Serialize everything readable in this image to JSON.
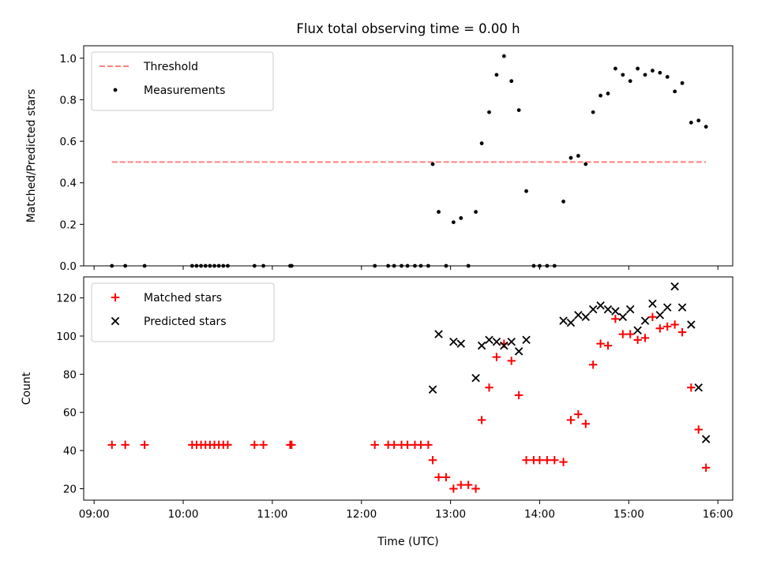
{
  "title": "Flux total observing time = 0.00 h",
  "colors": {
    "threshold": "#ff7f7f",
    "measurements": "#000000",
    "matched": "#ff0000",
    "predicted": "#000000"
  },
  "chart_data": [
    {
      "type": "scatter",
      "ylabel": "Matched/Predicted stars",
      "xlabel": "",
      "ylim": [
        0,
        1.06
      ],
      "yticks": [
        0.0,
        0.2,
        0.4,
        0.6,
        0.8,
        1.0
      ],
      "ytick_labels": [
        "0.0",
        "0.2",
        "0.4",
        "0.6",
        "0.8",
        "1.0"
      ],
      "xlim": [
        "08:53",
        "16:10"
      ],
      "legend_placement": "upper-left",
      "threshold": {
        "name": "Threshold",
        "y": 0.5,
        "x_start": "09:12",
        "x_end": "15:52"
      },
      "series": [
        {
          "name": "Measurements",
          "marker": "dot",
          "points": [
            [
              "09:12",
              0.0
            ],
            [
              "09:21",
              0.0
            ],
            [
              "09:34",
              0.0
            ],
            [
              "10:06",
              0.0
            ],
            [
              "10:09",
              0.0
            ],
            [
              "10:12",
              0.0
            ],
            [
              "10:15",
              0.0
            ],
            [
              "10:18",
              0.0
            ],
            [
              "10:21",
              0.0
            ],
            [
              "10:24",
              0.0
            ],
            [
              "10:27",
              0.0
            ],
            [
              "10:30",
              0.0
            ],
            [
              "10:48",
              0.0
            ],
            [
              "10:54",
              0.0
            ],
            [
              "11:12",
              0.0
            ],
            [
              "11:13",
              0.0
            ],
            [
              "12:09",
              0.0
            ],
            [
              "12:18",
              0.0
            ],
            [
              "12:22",
              0.0
            ],
            [
              "12:27",
              0.0
            ],
            [
              "12:31",
              0.0
            ],
            [
              "12:36",
              0.0
            ],
            [
              "12:40",
              0.0
            ],
            [
              "12:45",
              0.0
            ],
            [
              "12:48",
              0.49
            ],
            [
              "12:52",
              0.26
            ],
            [
              "12:57",
              0.0
            ],
            [
              "13:02",
              0.21
            ],
            [
              "13:07",
              0.23
            ],
            [
              "13:12",
              0.0
            ],
            [
              "13:17",
              0.26
            ],
            [
              "13:21",
              0.59
            ],
            [
              "13:26",
              0.74
            ],
            [
              "13:31",
              0.92
            ],
            [
              "13:36",
              1.01
            ],
            [
              "13:41",
              0.89
            ],
            [
              "13:46",
              0.75
            ],
            [
              "13:51",
              0.36
            ],
            [
              "13:56",
              0.0
            ],
            [
              "14:00",
              0.0
            ],
            [
              "14:05",
              0.0
            ],
            [
              "14:10",
              0.0
            ],
            [
              "14:16",
              0.31
            ],
            [
              "14:21",
              0.52
            ],
            [
              "14:26",
              0.53
            ],
            [
              "14:31",
              0.49
            ],
            [
              "14:36",
              0.74
            ],
            [
              "14:41",
              0.82
            ],
            [
              "14:46",
              0.83
            ],
            [
              "14:51",
              0.95
            ],
            [
              "14:56",
              0.92
            ],
            [
              "15:01",
              0.89
            ],
            [
              "15:06",
              0.95
            ],
            [
              "15:11",
              0.92
            ],
            [
              "15:16",
              0.94
            ],
            [
              "15:21",
              0.93
            ],
            [
              "15:26",
              0.91
            ],
            [
              "15:31",
              0.84
            ],
            [
              "15:36",
              0.88
            ],
            [
              "15:42",
              0.69
            ],
            [
              "15:47",
              0.7
            ],
            [
              "15:52",
              0.67
            ]
          ]
        }
      ]
    },
    {
      "type": "scatter",
      "ylabel": "Count",
      "xlabel": "Time (UTC)",
      "ylim": [
        14,
        131
      ],
      "yticks": [
        20,
        40,
        60,
        80,
        100,
        120
      ],
      "ytick_labels": [
        "20",
        "40",
        "60",
        "80",
        "100",
        "120"
      ],
      "xlim": [
        "08:53",
        "16:10"
      ],
      "xticks": [
        "09:00",
        "10:00",
        "11:00",
        "12:00",
        "13:00",
        "14:00",
        "15:00",
        "16:00"
      ],
      "xtick_labels": [
        "09:00",
        "10:00",
        "11:00",
        "12:00",
        "13:00",
        "14:00",
        "15:00",
        "16:00"
      ],
      "legend_placement": "upper-left",
      "series": [
        {
          "name": "Matched stars",
          "marker": "plus",
          "points": [
            [
              "09:12",
              43
            ],
            [
              "09:21",
              43
            ],
            [
              "09:34",
              43
            ],
            [
              "10:06",
              43
            ],
            [
              "10:09",
              43
            ],
            [
              "10:12",
              43
            ],
            [
              "10:15",
              43
            ],
            [
              "10:18",
              43
            ],
            [
              "10:21",
              43
            ],
            [
              "10:24",
              43
            ],
            [
              "10:27",
              43
            ],
            [
              "10:30",
              43
            ],
            [
              "10:48",
              43
            ],
            [
              "10:54",
              43
            ],
            [
              "11:12",
              43
            ],
            [
              "11:13",
              43
            ],
            [
              "12:09",
              43
            ],
            [
              "12:18",
              43
            ],
            [
              "12:22",
              43
            ],
            [
              "12:27",
              43
            ],
            [
              "12:31",
              43
            ],
            [
              "12:36",
              43
            ],
            [
              "12:40",
              43
            ],
            [
              "12:45",
              43
            ],
            [
              "12:48",
              35
            ],
            [
              "12:52",
              26
            ],
            [
              "12:57",
              26
            ],
            [
              "13:02",
              20
            ],
            [
              "13:07",
              22
            ],
            [
              "13:12",
              22
            ],
            [
              "13:17",
              20
            ],
            [
              "13:21",
              56
            ],
            [
              "13:26",
              73
            ],
            [
              "13:31",
              89
            ],
            [
              "13:36",
              96
            ],
            [
              "13:41",
              87
            ],
            [
              "13:46",
              69
            ],
            [
              "13:51",
              35
            ],
            [
              "13:56",
              35
            ],
            [
              "14:00",
              35
            ],
            [
              "14:05",
              35
            ],
            [
              "14:10",
              35
            ],
            [
              "14:16",
              34
            ],
            [
              "14:21",
              56
            ],
            [
              "14:26",
              59
            ],
            [
              "14:31",
              54
            ],
            [
              "14:36",
              85
            ],
            [
              "14:41",
              96
            ],
            [
              "14:46",
              95
            ],
            [
              "14:51",
              109
            ],
            [
              "14:56",
              101
            ],
            [
              "15:01",
              101
            ],
            [
              "15:06",
              98
            ],
            [
              "15:11",
              99
            ],
            [
              "15:16",
              110
            ],
            [
              "15:21",
              104
            ],
            [
              "15:26",
              105
            ],
            [
              "15:31",
              106
            ],
            [
              "15:36",
              102
            ],
            [
              "15:42",
              73
            ],
            [
              "15:47",
              51
            ],
            [
              "15:52",
              31
            ]
          ]
        },
        {
          "name": "Predicted stars",
          "marker": "x",
          "points": [
            [
              "12:48",
              72
            ],
            [
              "12:52",
              101
            ],
            [
              "13:02",
              97
            ],
            [
              "13:07",
              96
            ],
            [
              "13:17",
              78
            ],
            [
              "13:21",
              95
            ],
            [
              "13:26",
              98
            ],
            [
              "13:31",
              97
            ],
            [
              "13:36",
              95
            ],
            [
              "13:41",
              97
            ],
            [
              "13:46",
              92
            ],
            [
              "13:51",
              98
            ],
            [
              "14:16",
              108
            ],
            [
              "14:21",
              107
            ],
            [
              "14:26",
              111
            ],
            [
              "14:31",
              110
            ],
            [
              "14:36",
              114
            ],
            [
              "14:41",
              116
            ],
            [
              "14:46",
              114
            ],
            [
              "14:51",
              113
            ],
            [
              "14:56",
              110
            ],
            [
              "15:01",
              114
            ],
            [
              "15:06",
              103
            ],
            [
              "15:11",
              108
            ],
            [
              "15:16",
              117
            ],
            [
              "15:21",
              111
            ],
            [
              "15:26",
              115
            ],
            [
              "15:31",
              126
            ],
            [
              "15:36",
              115
            ],
            [
              "15:42",
              106
            ],
            [
              "15:47",
              73
            ],
            [
              "15:52",
              46
            ]
          ]
        }
      ]
    }
  ]
}
